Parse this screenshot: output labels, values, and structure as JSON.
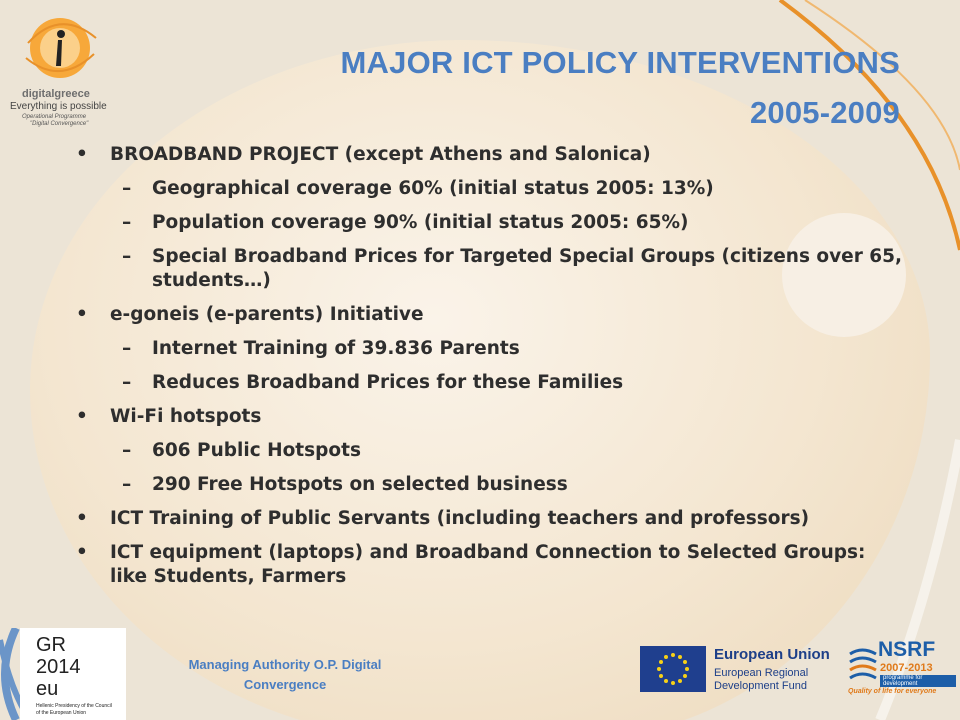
{
  "title_lines": [
    "MAJOR ICT POLICY INTERVENTIONS",
    "2005-2009"
  ],
  "items": [
    {
      "text": "BROADBAND PROJECT (except Athens and Salonica)",
      "subs": [
        "Geographical coverage 60% (initial status 2005: 13%)",
        "Population coverage 90% (initial status 2005: 65%)",
        "Special Broadband Prices for Targeted Special Groups (citizens over 65, students…)"
      ]
    },
    {
      "text": "e-goneis (e-parents) Initiative",
      "subs": [
        "Internet Training of 39.836 Parents",
        "Reduces Broadband Prices for these Families"
      ]
    },
    {
      "text": "Wi-Fi hotspots",
      "subs": [
        "606 Public Hotspots",
        "290 Free Hotspots on selected business"
      ]
    },
    {
      "text": "ICT Training of Public Servants (including teachers and professors)",
      "subs": []
    },
    {
      "text": "ICT equipment (laptops) and Broadband Connection to Selected Groups: like Students, Farmers",
      "subs": []
    }
  ],
  "footer": {
    "managing_authority": "Managing Authority O.P. Digital Convergence"
  },
  "logo_tl": {
    "brand": "digitalgreece",
    "tagline": "Everything is possible",
    "sub1": "Operational Programme",
    "sub2": "\"Digital Convergence\""
  },
  "gr_logo": {
    "l1": "GR",
    "l2": "2014",
    "l3": "eu",
    "caption1": "Hellenic Presidency of the Council",
    "caption2": "of the European Union"
  },
  "eu_logo": {
    "l1": "European Union",
    "l2": "European Regional",
    "l3": "Development Fund"
  },
  "nsrf_logo": {
    "l1": "NSRF",
    "l2": "2007-2013",
    "l3": "programme for development",
    "l4": "Quality of life for everyone"
  },
  "colors": {
    "accent_blue": "#4a7ec2",
    "accent_orange": "#e8912a",
    "text": "#2e2e2e"
  }
}
